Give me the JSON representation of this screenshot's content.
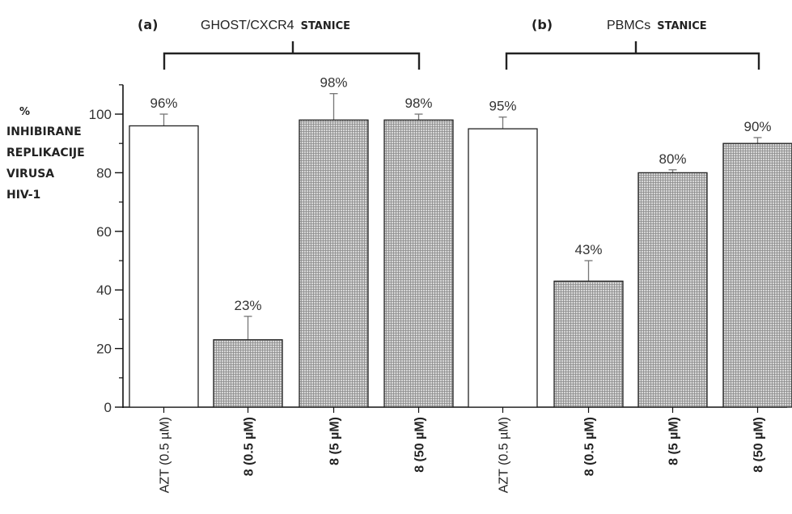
{
  "chart_data": {
    "type": "bar",
    "ylabel_lines": [
      "%",
      "INHIBIRANE",
      "REPLIKACIJE",
      "VIRUSA",
      "HIV-1"
    ],
    "ylim": [
      0,
      110
    ],
    "yticks": [
      0,
      20,
      40,
      60,
      80,
      100
    ],
    "grid": false,
    "groups": [
      {
        "label": "(a)",
        "name": "GHOST/CXCR4",
        "suffix": "STANICE"
      },
      {
        "label": "(b)",
        "name": "PBMCs",
        "suffix": "STANICE"
      }
    ],
    "categories": [
      "AZT (0.5 µM)",
      "8 (0.5 µM)",
      "8 (5 µM)",
      "8 (50 µM)",
      "AZT (0.5 µM)",
      "8 (0.5 µM)",
      "8 (5 µM)",
      "8 (50 µM)"
    ],
    "values": [
      96,
      23,
      98,
      98,
      95,
      43,
      80,
      90
    ],
    "errors": [
      4,
      8,
      9,
      2,
      4,
      7,
      1,
      2
    ],
    "data_labels": [
      "96%",
      "23%",
      "98%",
      "98%",
      "95%",
      "43%",
      "80%",
      "90%"
    ],
    "bar_fill": [
      "open",
      "hatched",
      "hatched",
      "hatched",
      "open",
      "hatched",
      "hatched",
      "hatched"
    ]
  }
}
